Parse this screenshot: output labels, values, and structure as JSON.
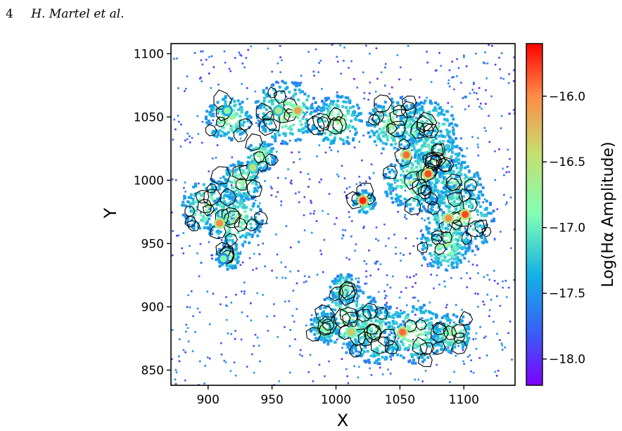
{
  "header": {
    "page_number": "4",
    "authors": "H. Martel et al."
  },
  "chart_data": {
    "type": "heatmap",
    "xlabel": "X",
    "ylabel": "Y",
    "xlim": [
      871,
      1140
    ],
    "ylim": [
      838,
      1108
    ],
    "xticks": [
      900,
      950,
      1000,
      1050,
      1100
    ],
    "yticks": [
      850,
      900,
      950,
      1000,
      1050,
      1100
    ],
    "colorbar": {
      "label": "Log(Hα Amplitude)",
      "range": [
        -18.2,
        -15.6
      ],
      "ticks": [
        -16.0,
        -16.5,
        -17.0,
        -17.5,
        -18.0
      ],
      "tick_labels": [
        "−16.0",
        "−16.5",
        "−17.0",
        "−17.5",
        "−18.0"
      ],
      "colormap": "rainbow"
    },
    "bright_knots": [
      {
        "x": 1021,
        "y": 984,
        "log_amp": -15.7
      },
      {
        "x": 1101,
        "y": 973,
        "log_amp": -15.8
      },
      {
        "x": 1072,
        "y": 1005,
        "log_amp": -15.8
      },
      {
        "x": 1052,
        "y": 880,
        "log_amp": -15.9
      },
      {
        "x": 1055,
        "y": 1020,
        "log_amp": -15.9
      },
      {
        "x": 1088,
        "y": 970,
        "log_amp": -16.0
      },
      {
        "x": 909,
        "y": 966,
        "log_amp": -16.0
      },
      {
        "x": 970,
        "y": 1055,
        "log_amp": -16.1
      },
      {
        "x": 1012,
        "y": 880,
        "log_amp": -16.3
      },
      {
        "x": 935,
        "y": 1010,
        "log_amp": -16.5
      },
      {
        "x": 955,
        "y": 1055,
        "log_amp": -16.6
      },
      {
        "x": 915,
        "y": 1055,
        "log_amp": -16.8
      },
      {
        "x": 912,
        "y": 938,
        "log_amp": -16.9
      }
    ]
  }
}
